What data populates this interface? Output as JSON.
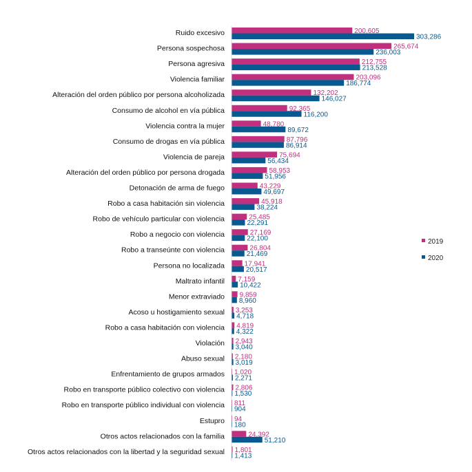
{
  "chart_data": {
    "type": "bar",
    "orientation": "horizontal",
    "categories": [
      "Ruido excesivo",
      "Persona sospechosa",
      "Persona agresiva",
      "Violencia familiar",
      "Alteración del orden público por persona alcoholizada",
      "Consumo de alcohol en vía pública",
      "Violencia contra la mujer",
      "Consumo de drogas en vía pública",
      "Violencia de pareja",
      "Alteración del orden público por persona drogada",
      "Detonación de arma de fuego",
      "Robo a casa habitación sin violencia",
      "Robo de vehículo particular con violencia",
      "Robo a negocio con violencia",
      "Robo a transeúnte con violencia",
      "Persona no localizada",
      "Maltrato infantil",
      "Menor extraviado",
      "Acoso u hostigamiento sexual",
      "Robo a casa habitación con violencia",
      "Violación",
      "Abuso sexual",
      "Enfrentamiento de grupos armados",
      "Robo en transporte público colectivo con violencia",
      "Robo en transporte público individual con violencia",
      "Estupro",
      "Otros actos relacionados con la familia",
      "Otros actos relacionados con la libertad y la seguridad sexual"
    ],
    "series": [
      {
        "name": "2019",
        "color": "#C0307F",
        "values": [
          200605,
          265674,
          212755,
          203096,
          132202,
          92365,
          48780,
          87796,
          75694,
          58953,
          43229,
          45918,
          25485,
          27169,
          26804,
          17941,
          7159,
          9859,
          3253,
          4819,
          2943,
          2180,
          1020,
          2806,
          811,
          94,
          24392,
          1801
        ],
        "labels": [
          "200,605",
          "265,674",
          "212,755",
          "203,096",
          "132,202",
          "92,365",
          "48,780",
          "87,796",
          "75,694",
          "58,953",
          "43,229",
          "45,918",
          "25,485",
          "27,169",
          "26,804",
          "17,941",
          "7,159",
          "9,859",
          "3,253",
          "4,819",
          "2,943",
          "2,180",
          "1,020",
          "2,806",
          "811",
          "94",
          "24,392",
          "1,801"
        ]
      },
      {
        "name": "2020",
        "color": "#08598F",
        "values": [
          303286,
          236003,
          213528,
          186774,
          146027,
          116200,
          89672,
          86914,
          56434,
          51956,
          49697,
          38224,
          22291,
          22100,
          21469,
          20517,
          10422,
          8960,
          4718,
          4322,
          3040,
          3019,
          2271,
          1530,
          904,
          180,
          51210,
          1413
        ],
        "labels": [
          "303,286",
          "236,003",
          "213,528",
          "186,774",
          "146,027",
          "116,200",
          "89,672",
          "86,914",
          "56,434",
          "51,956",
          "49,697",
          "38,224",
          "22,291",
          "22,100",
          "21,469",
          "20,517",
          "10,422",
          "8,960",
          "4,718",
          "4,322",
          "3,040",
          "3,019",
          "2,271",
          "1,530",
          "904",
          "180",
          "51,210",
          "1,413"
        ]
      }
    ],
    "xlim": [
      0,
      303286
    ],
    "grid": false,
    "legend_position": "right"
  }
}
